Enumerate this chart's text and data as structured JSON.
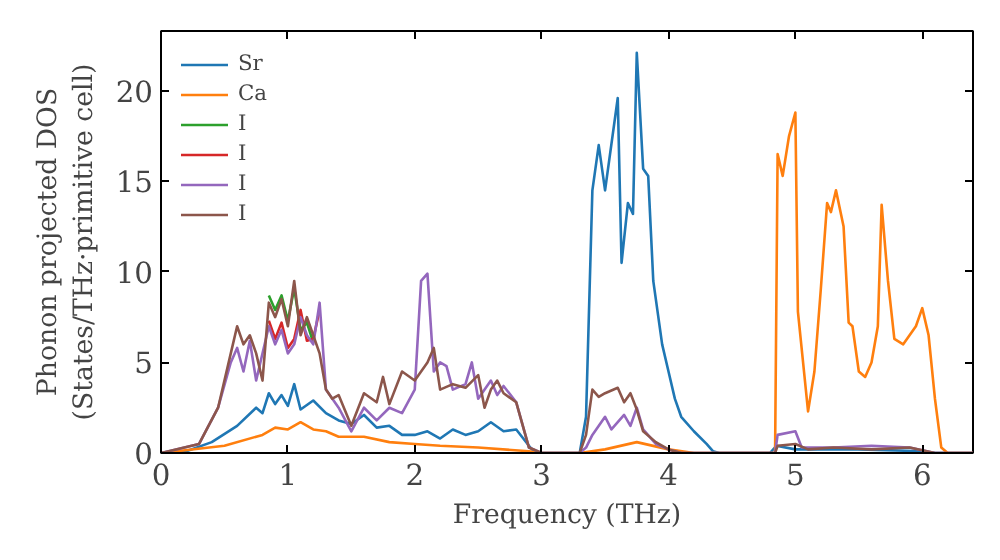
{
  "chart_data": {
    "type": "line",
    "xlabel": "Frequency (THz)",
    "ylabel": "Phonon projected DOS\n(States/THz·primitive cell)",
    "xlim": [
      0,
      6.4
    ],
    "ylim": [
      0,
      23.3
    ],
    "xticks": [
      0,
      1,
      2,
      3,
      4,
      5,
      6
    ],
    "yticks": [
      0,
      5,
      10,
      15,
      20
    ],
    "grid": false,
    "legend": "top left",
    "marker": "none",
    "line_style": "solid",
    "series": [
      {
        "name": "Sr",
        "color": "#1f77b4",
        "x": [
          0,
          0.2,
          0.4,
          0.6,
          0.75,
          0.8,
          0.85,
          0.9,
          0.95,
          1.0,
          1.05,
          1.1,
          1.2,
          1.3,
          1.4,
          1.5,
          1.6,
          1.7,
          1.8,
          1.9,
          2.0,
          2.1,
          2.2,
          2.3,
          2.4,
          2.5,
          2.6,
          2.7,
          2.8,
          2.9,
          2.95,
          3.3,
          3.35,
          3.4,
          3.45,
          3.5,
          3.6,
          3.63,
          3.68,
          3.72,
          3.75,
          3.8,
          3.84,
          3.88,
          3.95,
          4.0,
          4.05,
          4.1,
          4.2,
          4.3,
          4.35,
          4.4,
          4.8,
          4.85,
          5.0,
          5.5,
          6.0,
          6.1,
          6.4
        ],
        "values": [
          0,
          0.1,
          0.6,
          1.5,
          2.5,
          2.2,
          3.3,
          2.7,
          3.2,
          2.6,
          3.8,
          2.4,
          2.9,
          2.2,
          1.8,
          1.6,
          2.1,
          1.4,
          1.5,
          1.0,
          1.0,
          1.2,
          0.8,
          1.3,
          1.0,
          1.2,
          1.7,
          1.2,
          1.3,
          0.4,
          0,
          0,
          2,
          14.5,
          17,
          14.5,
          19.6,
          10.5,
          13.8,
          13.2,
          22.1,
          15.7,
          15.3,
          9.5,
          6,
          4.5,
          3.0,
          2.0,
          1.2,
          0.5,
          0.1,
          0,
          0,
          0.4,
          0.2,
          0.2,
          0.1,
          0,
          0
        ]
      },
      {
        "name": "Ca",
        "color": "#ff7f0e",
        "x": [
          0,
          0.5,
          0.8,
          0.9,
          1.0,
          1.1,
          1.2,
          1.3,
          1.4,
          1.6,
          1.8,
          2.0,
          2.2,
          2.5,
          2.9,
          3.0,
          3.3,
          3.5,
          3.75,
          4.0,
          4.2,
          4.84,
          4.86,
          4.9,
          4.95,
          5.0,
          5.02,
          5.1,
          5.15,
          5.2,
          5.25,
          5.28,
          5.32,
          5.38,
          5.42,
          5.45,
          5.5,
          5.55,
          5.6,
          5.65,
          5.68,
          5.73,
          5.78,
          5.85,
          5.95,
          6.0,
          6.05,
          6.1,
          6.15,
          6.2,
          6.4
        ],
        "values": [
          0,
          0.4,
          1.0,
          1.4,
          1.3,
          1.7,
          1.3,
          1.2,
          0.9,
          0.9,
          0.6,
          0.5,
          0.4,
          0.3,
          0.1,
          0,
          0,
          0.2,
          0.6,
          0.2,
          0,
          0,
          16.5,
          15.3,
          17.5,
          18.8,
          7.8,
          2.3,
          4.5,
          9.0,
          13.8,
          13.3,
          14.5,
          12.5,
          7.2,
          7.0,
          4.5,
          4.2,
          5.0,
          7.0,
          13.7,
          9.5,
          6.3,
          6.0,
          7.0,
          8.0,
          6.5,
          3.0,
          0.3,
          0,
          0
        ]
      },
      {
        "name": "I",
        "color": "#2ca02c",
        "x": [
          0.85,
          0.9,
          0.95,
          1.0,
          1.05,
          1.1,
          1.15,
          1.2
        ],
        "values": [
          8.7,
          7.9,
          8.7,
          7.3,
          9.1,
          6.8,
          7.2,
          6.1
        ]
      },
      {
        "name": "I",
        "color": "#d62728",
        "x": [
          0.85,
          0.9,
          0.95,
          1.0,
          1.05,
          1.1,
          1.15,
          1.2,
          1.25
        ],
        "values": [
          7.3,
          6.3,
          7.2,
          5.8,
          6.3,
          7.9,
          6.2,
          6.3,
          7.9
        ]
      },
      {
        "name": "I",
        "color": "#9467bd",
        "x": [
          0,
          0.3,
          0.45,
          0.55,
          0.6,
          0.65,
          0.7,
          0.75,
          0.85,
          0.9,
          0.95,
          1.0,
          1.05,
          1.1,
          1.15,
          1.2,
          1.25,
          1.3,
          1.4,
          1.5,
          1.6,
          1.7,
          1.8,
          1.9,
          2.0,
          2.05,
          2.1,
          2.15,
          2.2,
          2.25,
          2.3,
          2.4,
          2.45,
          2.5,
          2.6,
          2.65,
          2.7,
          2.8,
          2.9,
          3.0,
          3.3,
          3.35,
          3.4,
          3.5,
          3.55,
          3.65,
          3.7,
          3.75,
          3.8,
          3.9,
          4.0,
          4.1,
          4.84,
          4.86,
          5.0,
          5.05,
          5.3,
          5.6,
          5.9,
          6.1,
          6.4
        ],
        "values": [
          0,
          0.5,
          2.5,
          5.0,
          5.8,
          4.5,
          6.2,
          4.0,
          7.0,
          6.0,
          6.8,
          5.5,
          6.0,
          7.5,
          6.5,
          6.0,
          8.3,
          3.5,
          2.5,
          1.2,
          2.5,
          1.8,
          2.5,
          2.2,
          3.5,
          9.5,
          9.9,
          4.5,
          5.0,
          4.8,
          3.5,
          3.8,
          5.0,
          3.0,
          4.0,
          3.2,
          3.7,
          2.8,
          0.3,
          0,
          0,
          0.3,
          1.0,
          2.0,
          1.3,
          2.1,
          1.5,
          2.5,
          1.3,
          0.5,
          0.2,
          0,
          0,
          1.0,
          1.2,
          0.3,
          0.3,
          0.4,
          0.3,
          0,
          0
        ]
      },
      {
        "name": "I",
        "color": "#8c564b",
        "x": [
          0,
          0.3,
          0.45,
          0.55,
          0.6,
          0.65,
          0.7,
          0.75,
          0.8,
          0.85,
          0.9,
          0.95,
          1.0,
          1.05,
          1.1,
          1.15,
          1.2,
          1.25,
          1.3,
          1.35,
          1.4,
          1.5,
          1.6,
          1.7,
          1.75,
          1.8,
          1.9,
          2.0,
          2.1,
          2.15,
          2.2,
          2.3,
          2.4,
          2.5,
          2.55,
          2.6,
          2.65,
          2.7,
          2.8,
          2.9,
          3.0,
          3.3,
          3.35,
          3.4,
          3.45,
          3.5,
          3.6,
          3.65,
          3.7,
          3.75,
          3.8,
          3.9,
          4.0,
          4.1,
          4.84,
          4.86,
          5.0,
          5.1,
          5.3,
          5.6,
          5.9,
          6.1,
          6.4
        ],
        "values": [
          0,
          0.5,
          2.5,
          5.5,
          7.0,
          6.0,
          6.5,
          5.5,
          4.0,
          8.3,
          7.5,
          8.5,
          7.0,
          9.5,
          6.5,
          7.5,
          6.5,
          5.5,
          3.5,
          3.0,
          3.2,
          1.5,
          3.3,
          2.8,
          4.2,
          2.7,
          4.5,
          4.0,
          5.0,
          5.8,
          3.5,
          3.8,
          3.6,
          4.3,
          2.5,
          3.5,
          4.0,
          3.3,
          2.8,
          0.3,
          0,
          0,
          1.0,
          3.5,
          3.1,
          3.3,
          3.6,
          2.8,
          3.3,
          2.4,
          1.2,
          0.6,
          0.2,
          0,
          0,
          0.4,
          0.5,
          0.2,
          0.3,
          0.2,
          0.3,
          0,
          0
        ]
      }
    ]
  }
}
